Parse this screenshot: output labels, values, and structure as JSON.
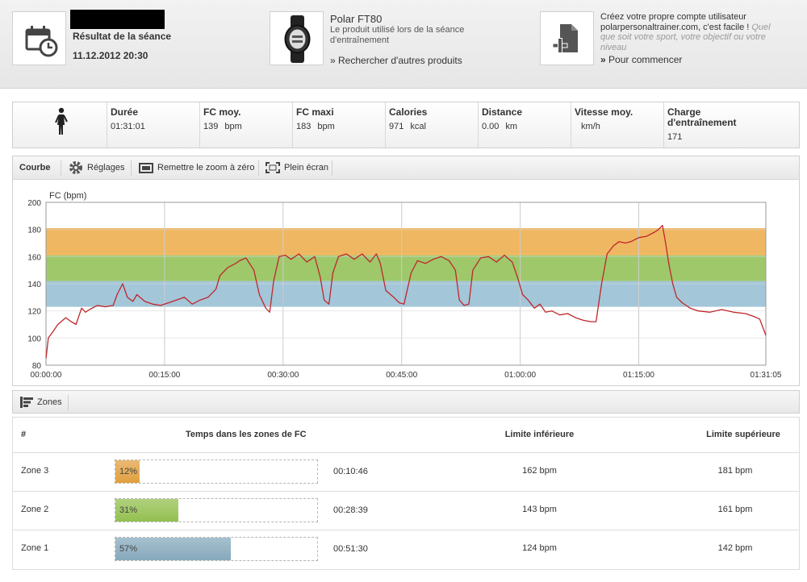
{
  "header": {
    "session_title": "Résultat de la séance",
    "session_date": "11.12.2012 20:30",
    "product_name": "Polar FT80",
    "product_desc": "Le produit utilisé lors de la séance d'entraînement",
    "product_link": "» Rechercher d'autres produits",
    "account_text": "Créez votre propre compte utilisateur polarpersonaltrainer.com, c'est facile !",
    "account_text_italic": "Quel que soit votre sport, votre objectif ou votre niveau",
    "account_link_arrow": "»",
    "account_link": "Pour commencer"
  },
  "summary": {
    "activity_icon": "walking-person-icon",
    "stats": [
      {
        "label": "Durée",
        "value": "01:31:01",
        "unit": ""
      },
      {
        "label": "FC moy.",
        "value": "139",
        "unit": "bpm"
      },
      {
        "label": "FC maxi",
        "value": "183",
        "unit": "bpm"
      },
      {
        "label": "Calories",
        "value": "971",
        "unit": "kcal"
      },
      {
        "label": "Distance",
        "value": "0.00",
        "unit": "km"
      },
      {
        "label": "Vitesse moy.",
        "value": "",
        "unit": "km/h"
      },
      {
        "label": "Charge d'entraînement",
        "value": "171",
        "unit": ""
      }
    ]
  },
  "chart_toolbar": {
    "curve_label": "Courbe",
    "settings_label": "Réglages",
    "reset_zoom_label": "Remettre le zoom à zéro",
    "fullscreen_label": "Plein écran"
  },
  "chart_data": {
    "type": "line",
    "ylabel": "FC (bpm)",
    "ylim": [
      80,
      200
    ],
    "yticks": [
      "80",
      "100",
      "120",
      "140",
      "160",
      "180",
      "200"
    ],
    "x_tick_labels": [
      "00:00:00",
      "00:15:00",
      "00:30:00",
      "00:45:00",
      "01:00:00",
      "01:15:00",
      "01:31:05"
    ],
    "x_tick_minutes": [
      0,
      15,
      30,
      45,
      60,
      75,
      91.08
    ],
    "xlim_minutes": [
      0,
      91.08
    ],
    "grid": true,
    "zone_bands": [
      {
        "zone": "Zone 1",
        "from": 124,
        "to": 142,
        "color": "#a3c6d9"
      },
      {
        "zone": "Zone 2",
        "from": 143,
        "to": 161,
        "color": "#9ec86a"
      },
      {
        "zone": "Zone 3",
        "from": 162,
        "to": 181,
        "color": "#f0b762"
      }
    ],
    "line_color": "#c0262b",
    "series": [
      {
        "minutes": [
          0,
          0.3,
          0.8,
          1.5,
          2.5,
          3.2,
          3.8,
          4.5,
          5,
          5.5,
          6.5,
          7.5,
          8.5,
          9,
          9.7,
          10.3,
          11,
          11.5,
          12.5,
          13.5,
          14.5,
          15.5,
          16.5,
          17.5,
          18.5,
          19.5,
          20.5,
          21.5,
          22,
          23,
          24,
          24.5,
          25.3,
          26.3,
          27,
          27.8,
          28.3,
          28.8,
          29.5,
          30.3,
          31,
          32,
          33,
          34,
          34.7,
          35.2,
          35.8,
          36.3,
          37,
          38,
          39,
          40,
          41,
          41.8,
          42.3,
          43,
          44,
          44.7,
          45.3,
          46.2,
          47,
          48,
          49,
          50,
          51,
          51.8,
          52.3,
          52.9,
          53.5,
          54,
          55,
          56,
          57,
          58,
          59,
          59.7,
          60.3,
          61,
          61.8,
          62.5,
          63.2,
          64,
          65,
          66,
          67,
          68,
          69,
          69.6,
          70.3,
          71,
          71.8,
          72.5,
          73.3,
          74,
          75,
          76,
          77,
          77.5,
          78,
          78.4,
          78.8,
          79.3,
          79.8,
          80.5,
          81.5,
          82.5,
          84,
          85.5,
          87,
          88.5,
          89.5,
          90.3,
          91.08
        ],
        "values": [
          85,
          100,
          104,
          110,
          115,
          112,
          110,
          122,
          119,
          121,
          124,
          123,
          124,
          132,
          140,
          130,
          127,
          132,
          127,
          125,
          124,
          126,
          128,
          130,
          125,
          128,
          130,
          136,
          146,
          152,
          155,
          157,
          159,
          150,
          132,
          122,
          119,
          142,
          160,
          161,
          158,
          162,
          156,
          160,
          145,
          128,
          125,
          148,
          160,
          162,
          158,
          162,
          156,
          162,
          155,
          135,
          130,
          126,
          125,
          148,
          157,
          155,
          158,
          160,
          157,
          150,
          128,
          124,
          125,
          150,
          159,
          160,
          156,
          161,
          156,
          144,
          132,
          128,
          122,
          125,
          119,
          120,
          117,
          118,
          115,
          113,
          112,
          112,
          140,
          162,
          168,
          171,
          170,
          171,
          174,
          175,
          178,
          180,
          183,
          170,
          155,
          140,
          130,
          126,
          122,
          120,
          119,
          121,
          119,
          118,
          116,
          114,
          102
        ]
      }
    ]
  },
  "zones": {
    "toolbar_label": "Zones",
    "col_hash": "#",
    "col_time": "Temps dans les zones de FC",
    "col_low": "Limite inférieure",
    "col_high": "Limite supérieure",
    "rows": [
      {
        "name": "Zone 3",
        "pct": 12,
        "pct_label": "12%",
        "time": "00:10:46",
        "low": "162 bpm",
        "high": "181 bpm",
        "color": "#e0a040"
      },
      {
        "name": "Zone 2",
        "pct": 31,
        "pct_label": "31%",
        "time": "00:28:39",
        "low": "143 bpm",
        "high": "161 bpm",
        "color": "#93c050"
      },
      {
        "name": "Zone 1",
        "pct": 57,
        "pct_label": "57%",
        "time": "00:51:30",
        "low": "124 bpm",
        "high": "142 bpm",
        "color": "#86a9bc"
      }
    ]
  }
}
